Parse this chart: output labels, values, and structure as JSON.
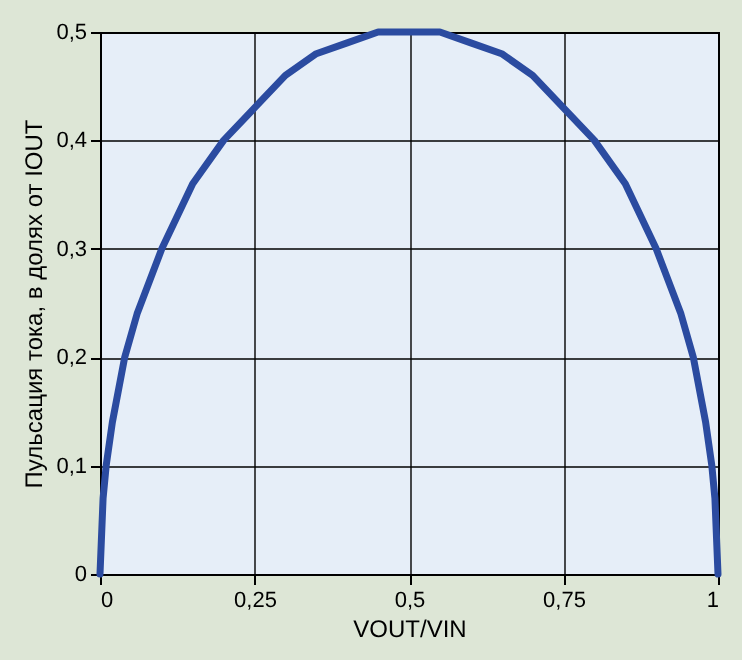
{
  "chart_data": {
    "type": "line",
    "xlabel": "VOUT/VIN",
    "ylabel": "Пульсация тока, в долях от IOUT",
    "x": [
      0,
      0.005,
      0.01,
      0.02,
      0.04,
      0.06,
      0.1,
      0.15,
      0.2,
      0.25,
      0.3,
      0.35,
      0.4,
      0.45,
      0.5,
      0.55,
      0.6,
      0.65,
      0.7,
      0.75,
      0.8,
      0.85,
      0.9,
      0.94,
      0.96,
      0.98,
      0.99,
      0.995,
      1
    ],
    "series": [
      {
        "color": "#2b4ba0",
        "values": [
          0,
          0.07,
          0.1,
          0.14,
          0.2,
          0.24,
          0.3,
          0.36,
          0.4,
          0.43,
          0.46,
          0.48,
          0.49,
          0.5,
          0.5,
          0.5,
          0.49,
          0.48,
          0.46,
          0.43,
          0.4,
          0.36,
          0.3,
          0.24,
          0.2,
          0.14,
          0.1,
          0.07,
          0
        ]
      }
    ],
    "xlim": [
      0,
      1
    ],
    "ylim": [
      0,
      0.5
    ],
    "xticks": [
      0,
      {
        "value": 0.25,
        "label": "0,25"
      },
      {
        "value": 0.5,
        "label": "0,5"
      },
      {
        "value": 0.75,
        "label": "0,75"
      },
      1
    ],
    "yticks": [
      0,
      {
        "value": 0.1,
        "label": "0,1"
      },
      {
        "value": 0.2,
        "label": "0,2"
      },
      {
        "value": 0.3,
        "label": "0,3"
      },
      {
        "value": 0.4,
        "label": "0,4"
      },
      {
        "value": 0.5,
        "label": "0,5"
      }
    ],
    "grid": true,
    "marker": "none",
    "line_style": "solid"
  }
}
